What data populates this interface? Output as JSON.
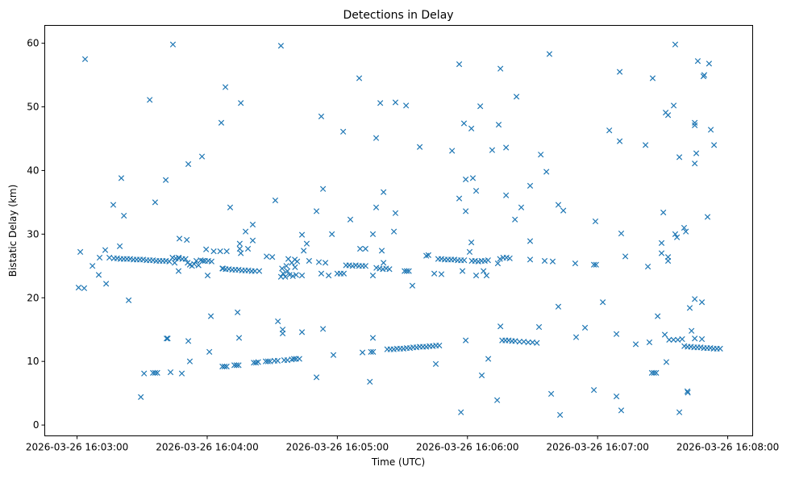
{
  "chart_data": {
    "type": "scatter",
    "title": "Detections in Delay",
    "xlabel": "Time (UTC)",
    "ylabel": "Bistatic Delay (km)",
    "x_units": "seconds since 2026-03-26 16:03:00",
    "xlim": [
      -14.9,
      311.5
    ],
    "ylim": [
      -1.7,
      62.8
    ],
    "grid": false,
    "marker": "x",
    "color": "#1f77b4",
    "xticks": [
      {
        "value": 0,
        "label": "2026-03-26 16:03:00"
      },
      {
        "value": 60,
        "label": "2026-03-26 16:04:00"
      },
      {
        "value": 120,
        "label": "2026-03-26 16:05:00"
      },
      {
        "value": 180,
        "label": "2026-03-26 16:06:00"
      },
      {
        "value": 240,
        "label": "2026-03-26 16:07:00"
      },
      {
        "value": 300,
        "label": "2026-03-26 16:08:00"
      }
    ],
    "yticks": [
      {
        "value": 0,
        "label": "0"
      },
      {
        "value": 10,
        "label": "10"
      },
      {
        "value": 20,
        "label": "20"
      },
      {
        "value": 30,
        "label": "30"
      },
      {
        "value": 40,
        "label": "40"
      },
      {
        "value": 50,
        "label": "50"
      },
      {
        "value": 60,
        "label": "60"
      }
    ],
    "points": [
      [
        0.7,
        21.6
      ],
      [
        3.3,
        21.5
      ],
      [
        1.5,
        27.2
      ],
      [
        3.7,
        57.5
      ],
      [
        7.1,
        25.0
      ],
      [
        10,
        23.6
      ],
      [
        13,
        27.5
      ],
      [
        13.4,
        22.2
      ],
      [
        10.4,
        26.3
      ],
      [
        14.9,
        26.3
      ],
      [
        16.7,
        34.6
      ],
      [
        20.4,
        38.8
      ],
      [
        21.6,
        32.9
      ],
      [
        19.7,
        28.1
      ],
      [
        23.8,
        19.6
      ],
      [
        33.5,
        51.1
      ],
      [
        44.2,
        59.8
      ],
      [
        36,
        35.0
      ],
      [
        40.9,
        38.5
      ],
      [
        51.3,
        41.0
      ],
      [
        57.6,
        42.2
      ],
      [
        66.5,
        47.5
      ],
      [
        68.4,
        53.1
      ],
      [
        75.5,
        50.6
      ],
      [
        70.6,
        34.2
      ],
      [
        47.2,
        29.3
      ],
      [
        50.6,
        29.1
      ],
      [
        77.7,
        30.4
      ],
      [
        81,
        31.5
      ],
      [
        81,
        29.0
      ],
      [
        94,
        59.6
      ],
      [
        91.4,
        35.3
      ],
      [
        112.6,
        48.5
      ],
      [
        110.4,
        33.6
      ],
      [
        113.4,
        37.1
      ],
      [
        117.5,
        30.0
      ],
      [
        122.7,
        46.1
      ],
      [
        126,
        32.3
      ],
      [
        130.1,
        54.5
      ],
      [
        137.9,
        45.1
      ],
      [
        139.8,
        50.6
      ],
      [
        146.8,
        50.7
      ],
      [
        141.3,
        36.6
      ],
      [
        137.9,
        34.2
      ],
      [
        136.4,
        30.0
      ],
      [
        146.8,
        33.3
      ],
      [
        146.1,
        30.4
      ],
      [
        46.8,
        24.2
      ],
      [
        60.2,
        23.5
      ],
      [
        59.5,
        27.6
      ],
      [
        63,
        27.3
      ],
      [
        66,
        27.3
      ],
      [
        69,
        27.3
      ],
      [
        75,
        28.5
      ],
      [
        75,
        27.7
      ],
      [
        75.5,
        27.0
      ],
      [
        78.8,
        27.7
      ],
      [
        67.3,
        24.6
      ],
      [
        87.4,
        26.5
      ],
      [
        90,
        26.4
      ],
      [
        97.4,
        26.1
      ],
      [
        100.4,
        26.0
      ],
      [
        103.7,
        23.5
      ],
      [
        46.8,
        26.3
      ],
      [
        45,
        25.5
      ],
      [
        103.7,
        29.9
      ],
      [
        105.9,
        28.5
      ],
      [
        104.5,
        27.4
      ],
      [
        107,
        25.8
      ],
      [
        111.5,
        25.6
      ],
      [
        114.5,
        25.5
      ],
      [
        112.6,
        23.8
      ],
      [
        116,
        23.5
      ],
      [
        130.5,
        27.7
      ],
      [
        133,
        27.7
      ],
      [
        136.4,
        23.5
      ],
      [
        140.5,
        27.4
      ],
      [
        141.3,
        25.5
      ],
      [
        29.4,
        4.4
      ],
      [
        30.9,
        8.1
      ],
      [
        43.1,
        8.3
      ],
      [
        48.3,
        8.1
      ],
      [
        41.3,
        13.6
      ],
      [
        41.8,
        13.6
      ],
      [
        51.3,
        13.2
      ],
      [
        52,
        10.0
      ],
      [
        61.7,
        17.1
      ],
      [
        61,
        11.5
      ],
      [
        74,
        17.7
      ],
      [
        74.7,
        13.7
      ],
      [
        92.6,
        16.3
      ],
      [
        94.8,
        15.0
      ],
      [
        94.8,
        14.4
      ],
      [
        103.7,
        14.6
      ],
      [
        113.4,
        15.1
      ],
      [
        110.4,
        7.5
      ],
      [
        118.2,
        11.0
      ],
      [
        131.6,
        11.4
      ],
      [
        136.4,
        13.7
      ],
      [
        135.5,
        11.5
      ],
      [
        136.5,
        11.5
      ],
      [
        135,
        6.8
      ],
      [
        176.2,
        56.7
      ],
      [
        195.2,
        56.0
      ],
      [
        217.8,
        58.3
      ],
      [
        202.6,
        51.6
      ],
      [
        185.9,
        50.1
      ],
      [
        151.7,
        50.2
      ],
      [
        178.4,
        47.4
      ],
      [
        181.8,
        46.6
      ],
      [
        194.4,
        47.2
      ],
      [
        158,
        43.7
      ],
      [
        172.9,
        43.1
      ],
      [
        191.4,
        43.2
      ],
      [
        197.8,
        43.6
      ],
      [
        213.8,
        42.5
      ],
      [
        216.4,
        39.8
      ],
      [
        208.9,
        37.6
      ],
      [
        179.2,
        38.6
      ],
      [
        182.5,
        38.8
      ],
      [
        184,
        36.8
      ],
      [
        197.8,
        36.1
      ],
      [
        176.2,
        35.6
      ],
      [
        179.2,
        33.6
      ],
      [
        204.8,
        34.2
      ],
      [
        201.9,
        32.3
      ],
      [
        221.9,
        34.6
      ],
      [
        224.2,
        33.7
      ],
      [
        239,
        32.0
      ],
      [
        250.9,
        30.1
      ],
      [
        245.4,
        46.3
      ],
      [
        250.2,
        44.6
      ],
      [
        250.2,
        55.5
      ],
      [
        262.1,
        44.0
      ],
      [
        265.4,
        54.5
      ],
      [
        275.8,
        59.8
      ],
      [
        275.1,
        50.2
      ],
      [
        271.4,
        49.1
      ],
      [
        272.5,
        48.7
      ],
      [
        277.7,
        42.1
      ],
      [
        284.8,
        47.5
      ],
      [
        284.8,
        47.1
      ],
      [
        292.2,
        46.4
      ],
      [
        293.7,
        44.0
      ],
      [
        285.5,
        42.7
      ],
      [
        284.8,
        41.1
      ],
      [
        286.2,
        57.2
      ],
      [
        291.4,
        56.8
      ],
      [
        288.8,
        54.8
      ],
      [
        289.2,
        55.0
      ],
      [
        290.7,
        32.7
      ],
      [
        270.3,
        33.4
      ],
      [
        279.9,
        31.0
      ],
      [
        280.7,
        30.4
      ],
      [
        275.8,
        30.0
      ],
      [
        276.6,
        29.5
      ],
      [
        269.5,
        28.6
      ],
      [
        269.5,
        27.0
      ],
      [
        272.5,
        26.4
      ],
      [
        272.5,
        25.8
      ],
      [
        263.2,
        24.9
      ],
      [
        252.8,
        26.5
      ],
      [
        181.8,
        28.7
      ],
      [
        181,
        27.2
      ],
      [
        208.9,
        28.9
      ],
      [
        229.7,
        25.4
      ],
      [
        238.3,
        25.2
      ],
      [
        239.3,
        25.2
      ],
      [
        208.9,
        26.0
      ],
      [
        215.6,
        25.8
      ],
      [
        219.3,
        25.7
      ],
      [
        177.7,
        24.2
      ],
      [
        184,
        23.5
      ],
      [
        187.4,
        24.2
      ],
      [
        188.8,
        23.5
      ],
      [
        164.7,
        23.8
      ],
      [
        168,
        23.7
      ],
      [
        154.6,
        21.9
      ],
      [
        165.4,
        9.6
      ],
      [
        179.2,
        13.3
      ],
      [
        195.2,
        15.5
      ],
      [
        189.6,
        10.4
      ],
      [
        186.6,
        7.8
      ],
      [
        193.7,
        3.9
      ],
      [
        177,
        2.0
      ],
      [
        218.6,
        4.9
      ],
      [
        222.7,
        1.6
      ],
      [
        221.9,
        18.6
      ],
      [
        213,
        15.4
      ],
      [
        230.1,
        13.8
      ],
      [
        234.2,
        15.3
      ],
      [
        238.3,
        5.5
      ],
      [
        242.4,
        19.3
      ],
      [
        248.7,
        14.3
      ],
      [
        248.7,
        4.5
      ],
      [
        250.9,
        2.3
      ],
      [
        257.6,
        12.7
      ],
      [
        263.9,
        13.0
      ],
      [
        267.7,
        17.1
      ],
      [
        271.7,
        9.9
      ],
      [
        271,
        14.2
      ],
      [
        277.7,
        2.0
      ],
      [
        281.4,
        5.3
      ],
      [
        281.6,
        5.1
      ],
      [
        282.5,
        18.4
      ],
      [
        284.8,
        19.8
      ],
      [
        288.1,
        19.3
      ],
      [
        283.3,
        14.8
      ],
      [
        284.8,
        13.6
      ],
      [
        288.1,
        13.5
      ],
      [
        17,
        26.2
      ],
      [
        18.5,
        26.2
      ],
      [
        20,
        26.1
      ],
      [
        21.5,
        26.1
      ],
      [
        23,
        26.1
      ],
      [
        24.5,
        26.1
      ],
      [
        26,
        26.0
      ],
      [
        27.5,
        26.0
      ],
      [
        29,
        26.0
      ],
      [
        30.5,
        26.0
      ],
      [
        32,
        25.9
      ],
      [
        33.5,
        25.9
      ],
      [
        35,
        25.9
      ],
      [
        36.5,
        25.8
      ],
      [
        38,
        25.8
      ],
      [
        39.5,
        25.8
      ],
      [
        41,
        25.8
      ],
      [
        42.5,
        25.7
      ],
      [
        44,
        26.3
      ],
      [
        45.5,
        26.2
      ],
      [
        47,
        26.2
      ],
      [
        48.5,
        26.1
      ],
      [
        50,
        26.1
      ],
      [
        51,
        25.5
      ],
      [
        52,
        25.2
      ],
      [
        53,
        25.0
      ],
      [
        54,
        25.3
      ],
      [
        55,
        25.8
      ],
      [
        56,
        25.1
      ],
      [
        57,
        25.9
      ],
      [
        58,
        25.8
      ],
      [
        59,
        25.8
      ],
      [
        60.5,
        25.8
      ],
      [
        62,
        25.7
      ],
      [
        67,
        24.6
      ],
      [
        68.5,
        24.5
      ],
      [
        70,
        24.5
      ],
      [
        71.5,
        24.4
      ],
      [
        73,
        24.4
      ],
      [
        74.5,
        24.4
      ],
      [
        76,
        24.3
      ],
      [
        77.5,
        24.3
      ],
      [
        79,
        24.3
      ],
      [
        80.5,
        24.2
      ],
      [
        82,
        24.2
      ],
      [
        84,
        24.2
      ],
      [
        94,
        23.3
      ],
      [
        94.5,
        24.6
      ],
      [
        95,
        23.8
      ],
      [
        96,
        23.3
      ],
      [
        96.5,
        25.0
      ],
      [
        97,
        24.2
      ],
      [
        98,
        23.6
      ],
      [
        99,
        25.5
      ],
      [
        99.5,
        23.4
      ],
      [
        100.5,
        24.8
      ],
      [
        101,
        23.6
      ],
      [
        101.5,
        25.7
      ],
      [
        120,
        23.8
      ],
      [
        121.5,
        23.8
      ],
      [
        123,
        23.8
      ],
      [
        124,
        25.1
      ],
      [
        125.5,
        25.1
      ],
      [
        127,
        25.0
      ],
      [
        128.5,
        25.1
      ],
      [
        130,
        25.0
      ],
      [
        131.5,
        25.0
      ],
      [
        133,
        25.0
      ],
      [
        138,
        24.7
      ],
      [
        139.5,
        24.6
      ],
      [
        141,
        24.5
      ],
      [
        142.5,
        24.6
      ],
      [
        144,
        24.5
      ],
      [
        151,
        24.2
      ],
      [
        152,
        24.2
      ],
      [
        153,
        24.2
      ],
      [
        161,
        26.6
      ],
      [
        162,
        26.7
      ],
      [
        166.5,
        26.1
      ],
      [
        168,
        26.1
      ],
      [
        169.5,
        26.0
      ],
      [
        171,
        26.0
      ],
      [
        172.5,
        26.0
      ],
      [
        174,
        26.0
      ],
      [
        175.5,
        25.9
      ],
      [
        177,
        25.9
      ],
      [
        178.5,
        25.9
      ],
      [
        182,
        25.8
      ],
      [
        183.5,
        25.8
      ],
      [
        185,
        25.7
      ],
      [
        186.5,
        25.8
      ],
      [
        188,
        25.8
      ],
      [
        189.5,
        25.9
      ],
      [
        194,
        25.4
      ],
      [
        195,
        26.1
      ],
      [
        196.5,
        26.3
      ],
      [
        198,
        26.3
      ],
      [
        199.5,
        26.2
      ],
      [
        35,
        8.2
      ],
      [
        36,
        8.2
      ],
      [
        37,
        8.2
      ],
      [
        67,
        9.2
      ],
      [
        68,
        9.2
      ],
      [
        69,
        9.2
      ],
      [
        72.5,
        9.4
      ],
      [
        73.5,
        9.4
      ],
      [
        74.5,
        9.4
      ],
      [
        81.5,
        9.8
      ],
      [
        82.5,
        9.8
      ],
      [
        83.5,
        9.9
      ],
      [
        87,
        10.0
      ],
      [
        88,
        10.0
      ],
      [
        89,
        10.0
      ],
      [
        91,
        10.1
      ],
      [
        92.5,
        10.1
      ],
      [
        95.5,
        10.2
      ],
      [
        97,
        10.2
      ],
      [
        99,
        10.3
      ],
      [
        100,
        10.4
      ],
      [
        101,
        10.4
      ],
      [
        102.5,
        10.4
      ],
      [
        143,
        11.9
      ],
      [
        144.5,
        11.9
      ],
      [
        146,
        11.9
      ],
      [
        147.5,
        12.0
      ],
      [
        149,
        12.0
      ],
      [
        150.5,
        12.0
      ],
      [
        152,
        12.1
      ],
      [
        153.5,
        12.1
      ],
      [
        155,
        12.2
      ],
      [
        156.5,
        12.2
      ],
      [
        158,
        12.3
      ],
      [
        159.5,
        12.3
      ],
      [
        161,
        12.3
      ],
      [
        162.5,
        12.4
      ],
      [
        164,
        12.4
      ],
      [
        165.5,
        12.5
      ],
      [
        167,
        12.5
      ],
      [
        196,
        13.3
      ],
      [
        197.5,
        13.3
      ],
      [
        199,
        13.3
      ],
      [
        200.5,
        13.2
      ],
      [
        202,
        13.2
      ],
      [
        204,
        13.1
      ],
      [
        206,
        13.1
      ],
      [
        208,
        13.0
      ],
      [
        210,
        13.0
      ],
      [
        212,
        12.9
      ],
      [
        265,
        8.2
      ],
      [
        266,
        8.2
      ],
      [
        267,
        8.2
      ],
      [
        273,
        13.4
      ],
      [
        275,
        13.4
      ],
      [
        277,
        13.4
      ],
      [
        279,
        13.5
      ],
      [
        280,
        12.4
      ],
      [
        281.5,
        12.3
      ],
      [
        283,
        12.3
      ],
      [
        284.5,
        12.2
      ],
      [
        286,
        12.2
      ],
      [
        287.5,
        12.2
      ],
      [
        289,
        12.1
      ],
      [
        290.5,
        12.1
      ],
      [
        292,
        12.1
      ],
      [
        293.5,
        12.0
      ],
      [
        295,
        12.0
      ],
      [
        296.5,
        12.0
      ]
    ]
  }
}
